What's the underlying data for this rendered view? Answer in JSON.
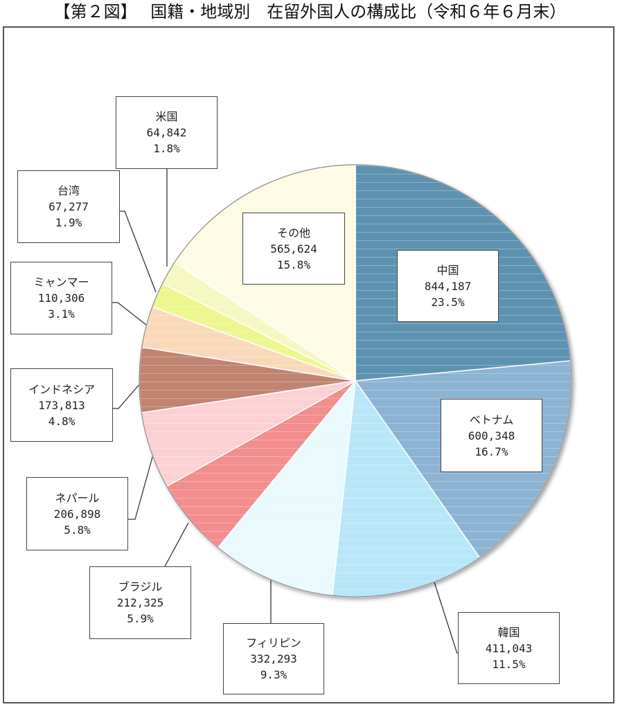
{
  "title": "【第２図】　 国籍・地域別　在留外国人の構成比（令和６年６月末）",
  "chart_data": {
    "type": "pie",
    "title": "【第２図】　 国籍・地域別　在留外国人の構成比（令和６年６月末）",
    "start": "12 o'clock",
    "direction": "clockwise",
    "slices": [
      {
        "label": "中国",
        "value": 844187,
        "value_text": "844,187",
        "percent": 23.5,
        "percent_text": "23.5%",
        "color": "#5d93b1"
      },
      {
        "label": "ベトナム",
        "value": 600348,
        "value_text": "600,348",
        "percent": 16.7,
        "percent_text": "16.7%",
        "color": "#8db3d3"
      },
      {
        "label": "韓国",
        "value": 411043,
        "value_text": "411,043",
        "percent": 11.5,
        "percent_text": "11.5%",
        "color": "#b7e6f8"
      },
      {
        "label": "フィリピン",
        "value": 332293,
        "value_text": "332,293",
        "percent": 9.3,
        "percent_text": "9.3%",
        "color": "#e9f9fd"
      },
      {
        "label": "ブラジル",
        "value": 212325,
        "value_text": "212,325",
        "percent": 5.9,
        "percent_text": "5.9%",
        "color": "#f28e8e"
      },
      {
        "label": "ネパール",
        "value": 206898,
        "value_text": "206,898",
        "percent": 5.8,
        "percent_text": "5.8%",
        "color": "#fcd1d4"
      },
      {
        "label": "インドネシア",
        "value": 173813,
        "value_text": "173,813",
        "percent": 4.8,
        "percent_text": "4.8%",
        "color": "#c08470"
      },
      {
        "label": "ミャンマー",
        "value": 110306,
        "value_text": "110,306",
        "percent": 3.1,
        "percent_text": "3.1%",
        "color": "#fad9bb"
      },
      {
        "label": "台湾",
        "value": 67277,
        "value_text": "67,277",
        "percent": 1.9,
        "percent_text": "1.9%",
        "color": "#eef78f"
      },
      {
        "label": "米国",
        "value": 64842,
        "value_text": "64,842",
        "percent": 1.8,
        "percent_text": "1.8%",
        "color": "#f6f8c2"
      },
      {
        "label": "その他",
        "value": 565624,
        "value_text": "565,624",
        "percent": 15.8,
        "percent_text": "15.8%",
        "color": "#fefbe4"
      }
    ]
  }
}
